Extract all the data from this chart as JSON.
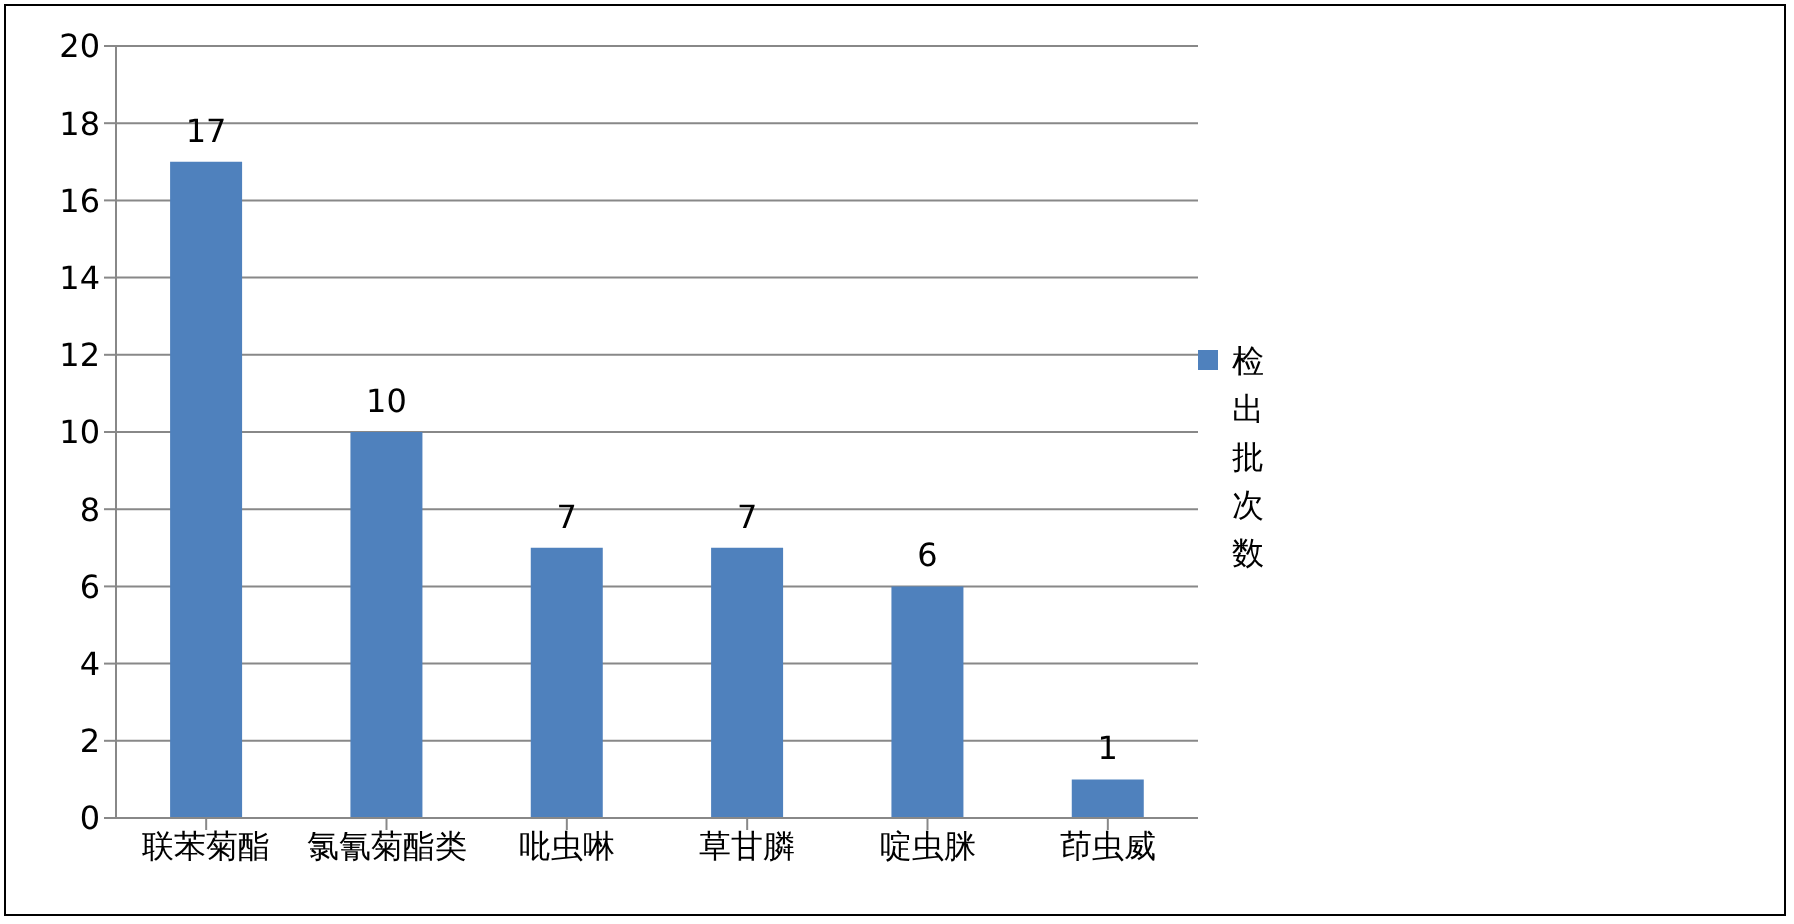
{
  "chart_data": {
    "type": "bar",
    "categories": [
      "联苯菊酯",
      "氯氰菊酯类",
      "吡虫啉",
      "草甘膦",
      "啶虫脒",
      "茚虫威"
    ],
    "series": [
      {
        "name": "检出批次数",
        "color": "#4f81bd",
        "values": [
          17,
          10,
          7,
          7,
          6,
          1
        ]
      }
    ],
    "ylim": [
      0,
      20
    ],
    "yticks": [
      0,
      2,
      4,
      6,
      8,
      10,
      12,
      14,
      16,
      18,
      20
    ],
    "grid": "y",
    "legend": "right",
    "data_labels": true
  }
}
